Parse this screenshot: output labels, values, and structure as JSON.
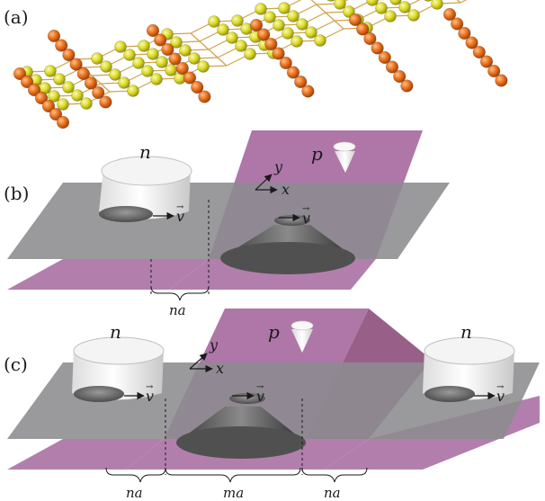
{
  "panels": {
    "a": {
      "label": "(a)"
    },
    "b": {
      "label": "(b)",
      "region_left": "n",
      "region_right": "p",
      "axis_x": "x",
      "axis_y": "y",
      "velocity": "v",
      "width_label": "na"
    },
    "c": {
      "label": "(c)",
      "region_left": "n",
      "region_middle": "p",
      "region_right": "n",
      "axis_x": "x",
      "axis_y": "y",
      "velocity": "v",
      "width_left": "na",
      "width_middle": "ma",
      "width_right": "na"
    }
  },
  "colors": {
    "gray_plane": "#8c8c90",
    "purple_plane": "#a5689f",
    "orange_atom": "#e0701e",
    "yellow_atom": "#d9d825",
    "bond": "#cfa34a"
  }
}
